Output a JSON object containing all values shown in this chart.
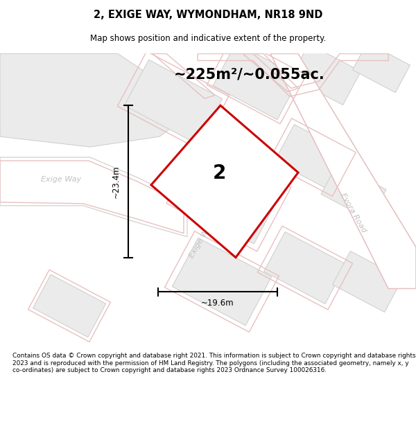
{
  "title_line1": "2, EXIGE WAY, WYMONDHAM, NR18 9ND",
  "title_line2": "Map shows position and indicative extent of the property.",
  "area_label": "~225m²/~0.055ac.",
  "plot_number": "2",
  "width_label": "~19.6m",
  "height_label": "~23.4m",
  "footer_text": "Contains OS data © Crown copyright and database right 2021. This information is subject to Crown copyright and database rights 2023 and is reproduced with the permission of HM Land Registry. The polygons (including the associated geometry, namely x, y co-ordinates) are subject to Crown copyright and database rights 2023 Ordnance Survey 100026316.",
  "bg_color": "#ffffff",
  "map_bg": "#f7f7f7",
  "plot_fill": "#ffffff",
  "plot_edge": "#cc0000",
  "road_outline": "#d4b8b8",
  "road_fill": "#ffffff",
  "building_fill": "#ebebeb",
  "building_edge": "#cccccc",
  "pink_outline": "#e8c0c0",
  "road_label_color": "#c0c0c0",
  "dim_color": "#000000"
}
